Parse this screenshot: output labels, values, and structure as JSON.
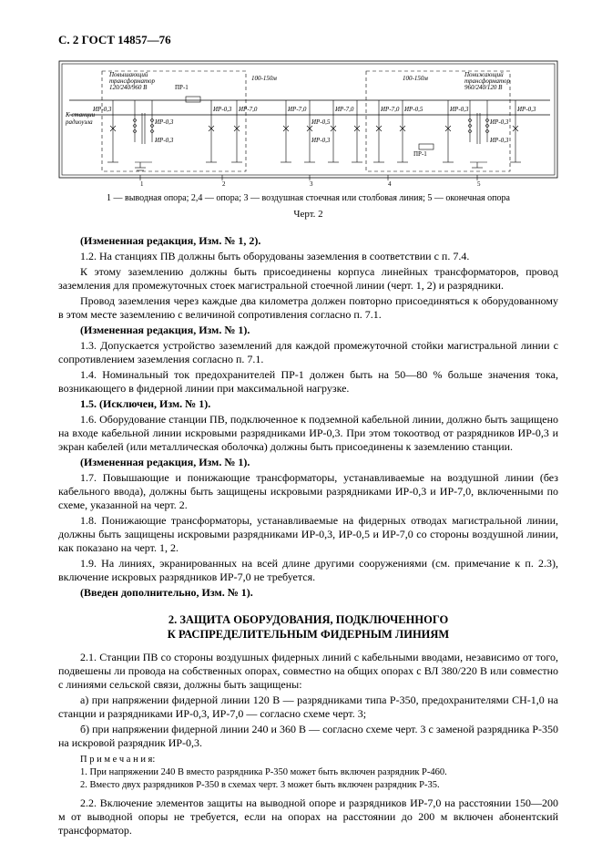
{
  "header": "С. 2 ГОСТ 14857—76",
  "diagram": {
    "outer_border_color": "#000000",
    "bg": "#ffffff",
    "labels": {
      "tx_up": "Повышающий трансформатор 120/240/960 В",
      "tx_down": "Понижающий трансформатор 960/240/120 В",
      "dist1": "100-150м",
      "dist2": "100-150м",
      "pr1": "ПР-1",
      "pr1b": "ПР-1",
      "left_side": "К станции радиоузла",
      "ir03": "ИР-0,3",
      "ir05": "ИР-0,5",
      "ir70": "ИР-7,0",
      "marks": [
        "1",
        "2",
        "3",
        "4",
        "5"
      ]
    }
  },
  "caption": "1 — выводная опора; 2,4 — опора; 3 — воздушная стоечная или столбовая линия; 5 — оконечная опора",
  "fig_num": "Черт. 2",
  "paras": [
    {
      "b": true,
      "t": "(Измененная редакция, Изм. № 1, 2)."
    },
    {
      "t": "1.2. На станциях ПВ должны быть оборудованы заземления в соответствии с п. 7.4."
    },
    {
      "t": "К этому заземлению должны быть присоединены корпуса линейных трансформаторов, провод заземления для промежуточных стоек магистральной стоечной линии (черт. 1, 2) и разрядники."
    },
    {
      "t": "Провод заземления через каждые два километра должен повторно присоединяться к оборудованному в этом месте заземлению с величиной сопротивления согласно п. 7.1."
    },
    {
      "b": true,
      "t": "(Измененная редакция, Изм. № 1)."
    },
    {
      "t": "1.3. Допускается устройство заземлений для каждой промежуточной стойки магистральной линии с сопротивлением заземления согласно п. 7.1."
    },
    {
      "t": "1.4. Номинальный ток предохранителей ПР-1 должен быть на 50—80 % больше значения тока, возникающего в фидерной линии при максимальной нагрузке."
    },
    {
      "b": true,
      "t": "1.5. (Исключен, Изм. № 1)."
    },
    {
      "t": "1.6. Оборудование станции ПВ, подключенное к подземной кабельной линии, должно быть защищено на входе кабельной линии искровыми разрядниками ИР-0,3. При этом токоотвод от разрядников ИР-0,3 и экран кабелей (или металлическая оболочка) должны быть присоединены к заземлению станции."
    },
    {
      "b": true,
      "t": "(Измененная редакция, Изм. № 1)."
    },
    {
      "t": "1.7. Повышающие и понижающие трансформаторы, устанавливаемые на воздушной линии (без кабельного ввода), должны быть защищены искровыми разрядниками ИР-0,3 и ИР-7,0, включенными по схеме, указанной на черт. 2."
    },
    {
      "t": "1.8. Понижающие трансформаторы, устанавливаемые на фидерных отводах магистральной линии, должны быть защищены искровыми разрядниками ИР-0,3, ИР-0,5 и ИР-7,0 со стороны воздушной линии, как показано на черт. 1, 2."
    },
    {
      "t": "1.9. На линиях, экранированных на всей длине другими сооружениями (см. примечание к п. 2.3), включение искровых разрядников ИР-7,0 не требуется."
    },
    {
      "b": true,
      "t": "(Введен дополнительно, Изм. № 1)."
    }
  ],
  "section_title_l1": "2. ЗАЩИТА ОБОРУДОВАНИЯ, ПОДКЛЮЧЕННОГО",
  "section_title_l2": "К РАСПРЕДЕЛИТЕЛЬНЫМ ФИДЕРНЫМ ЛИНИЯМ",
  "paras2": [
    {
      "t": "2.1. Станции ПВ со стороны воздушных фидерных линий с кабельными вводами, независимо от того, подвешены ли провода на собственных опорах, совместно на общих опорах с ВЛ 380/220 В или совместно с линиями сельской связи, должны быть защищены:"
    },
    {
      "t": "а) при напряжении фидерной линии 120 В — разрядниками типа Р-350, предохранителями СН-1,0 на станции и разрядниками ИР-0,3, ИР-7,0 — согласно схеме черт. 3;"
    },
    {
      "t": "б) при напряжении фидерной линии 240 и 360 В — согласно схеме черт. 3 с заменой разрядника Р-350 на искровой разрядник ИР-0,3."
    }
  ],
  "notes_header": "П р и м е ч а н и я:",
  "notes": [
    "1. При напряжении 240 В вместо разрядника Р-350 может быть включен разрядник Р-460.",
    "2. Вместо двух разрядников Р-350 в схемах черт. 3 может быть включен разрядник Р-35."
  ],
  "para_last": "2.2. Включение элементов защиты на выводной опоре и разрядников ИР-7,0 на расстоянии 150—200 м от выводной опоры не требуется, если на опорах на расстоянии до 200 м включен абонентский трансформатор."
}
